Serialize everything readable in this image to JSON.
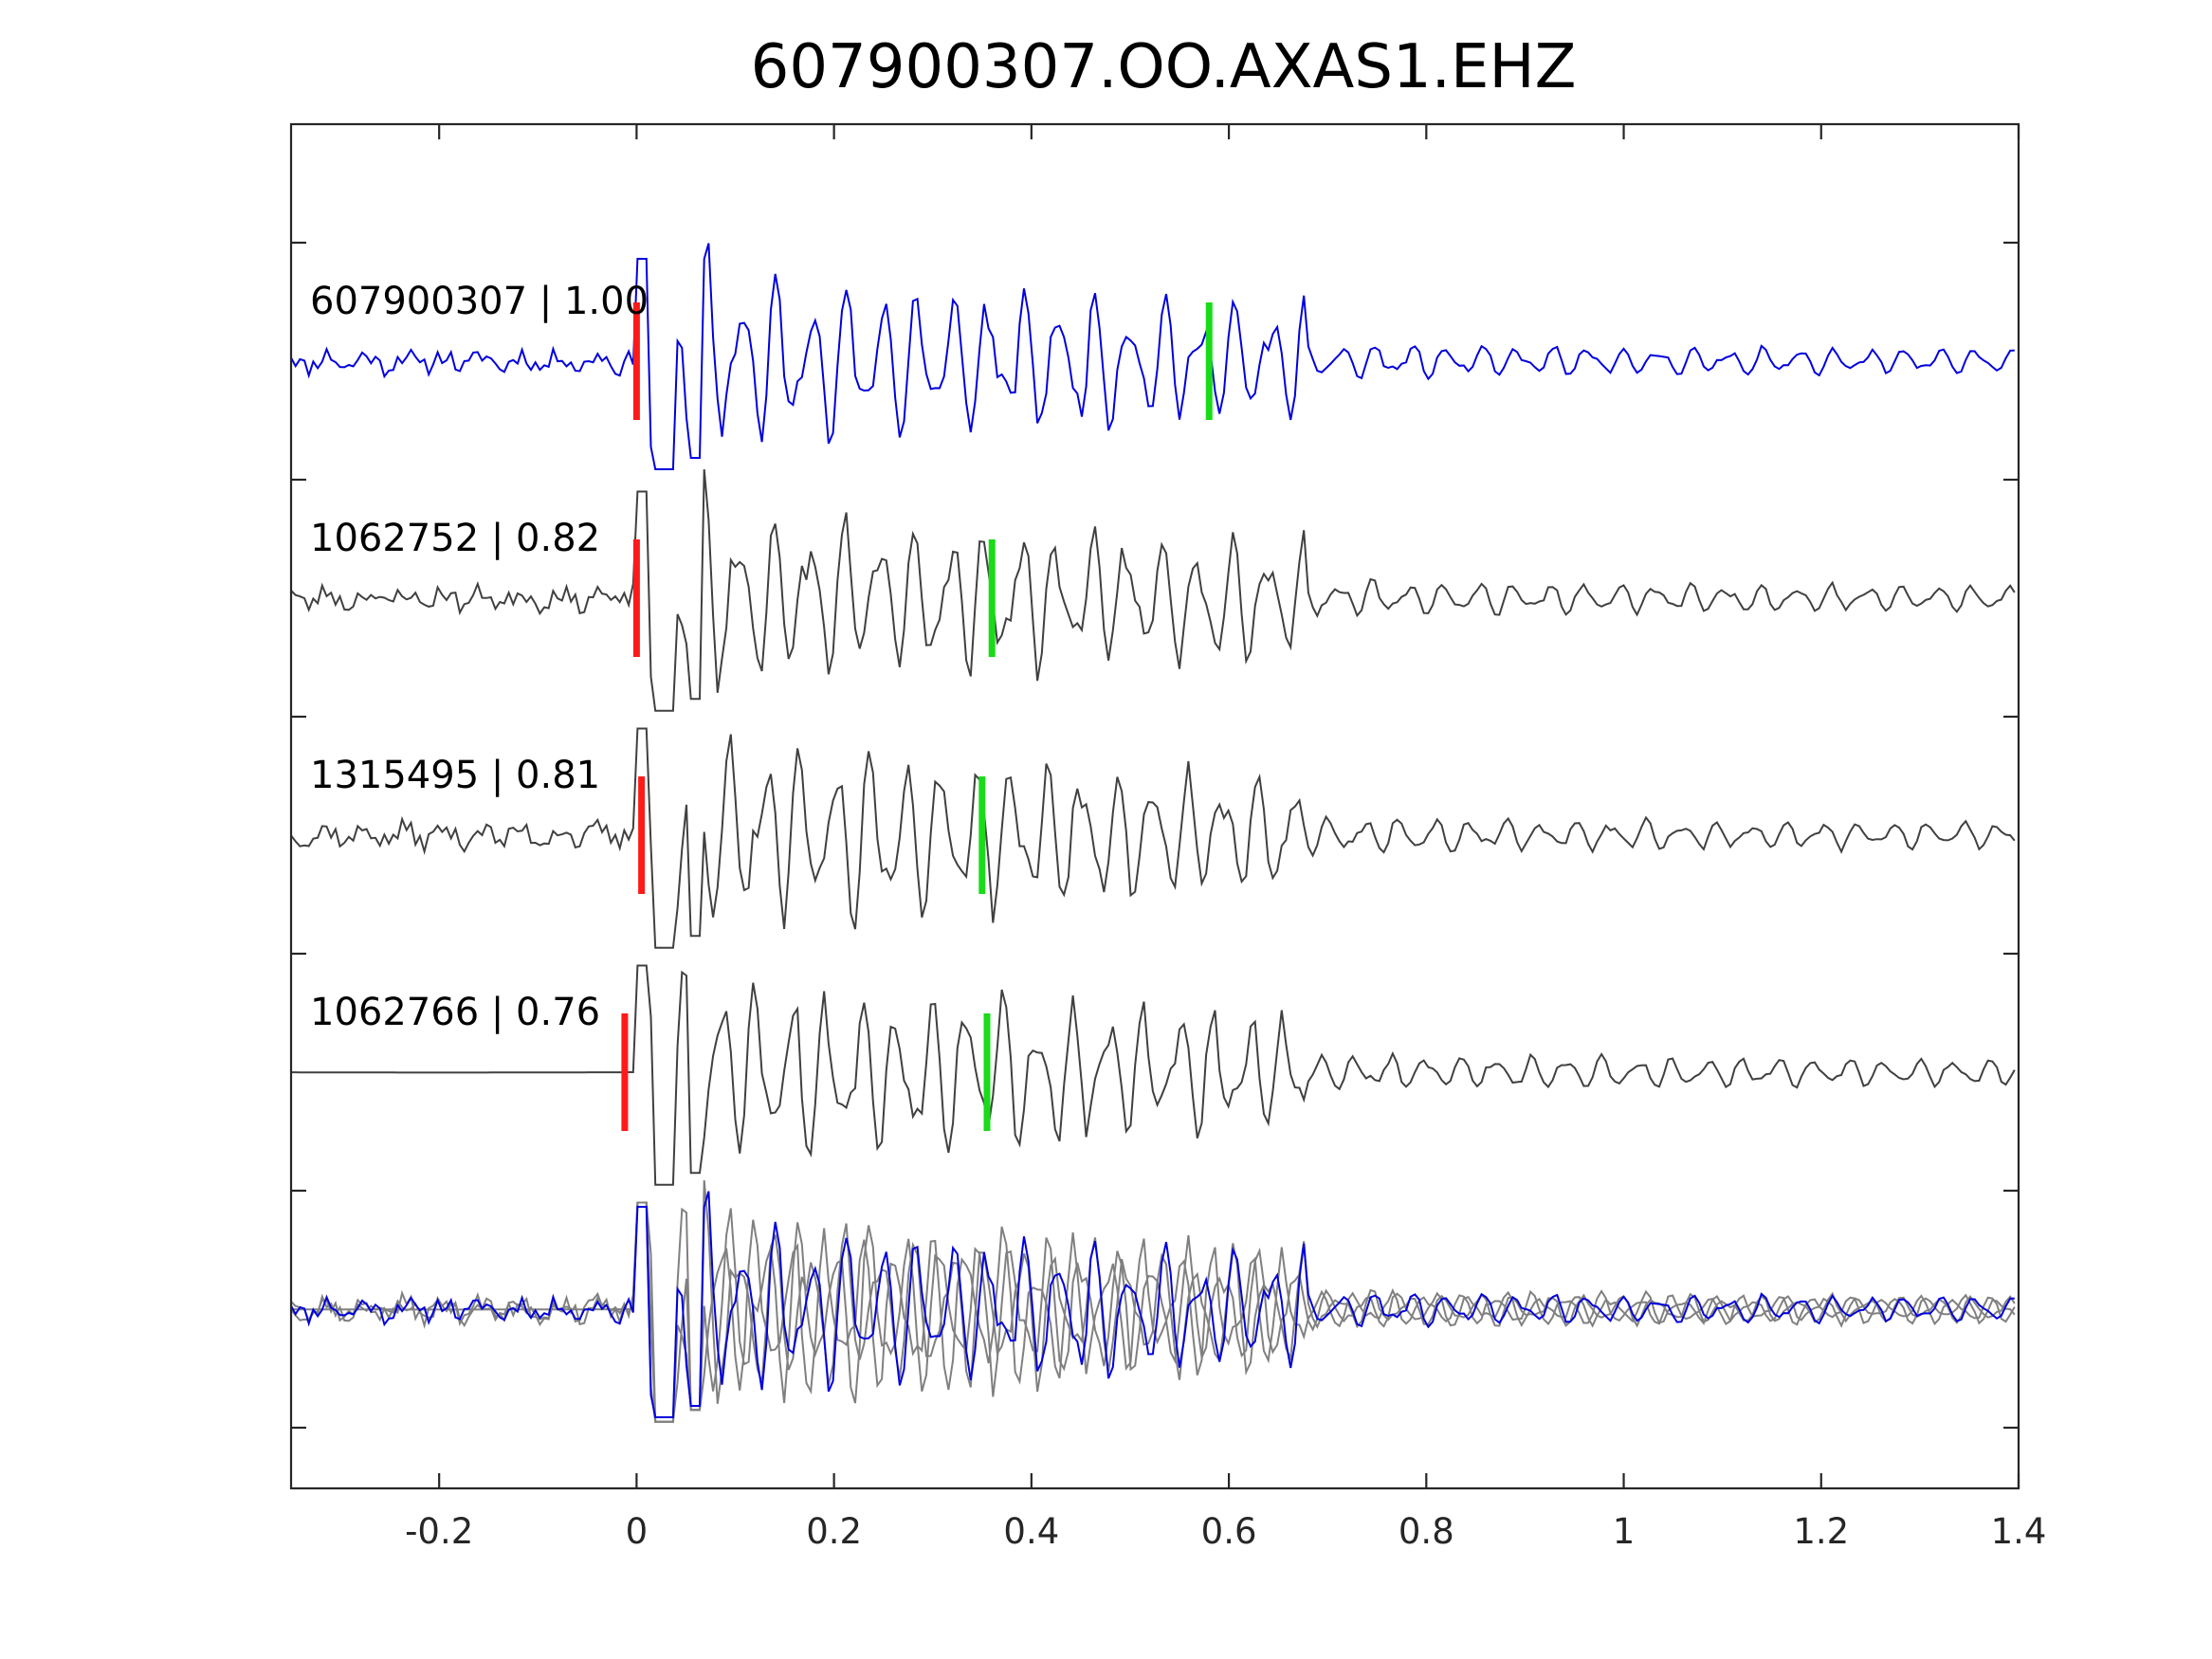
{
  "chart_data": {
    "type": "line",
    "title": "607900307.OO.AXAS1.EHZ",
    "xlabel": "",
    "ylabel": "",
    "xlim": [
      -0.35,
      1.4
    ],
    "x_ticks": [
      -0.2,
      0,
      0.2,
      0.4,
      0.6,
      0.8,
      1,
      1.2,
      1.4
    ],
    "x_tick_labels": [
      "-0.2",
      "0",
      "0.2",
      "0.4",
      "0.6",
      "0.8",
      "1",
      "1.2",
      "1.4"
    ],
    "y_tick_count": 6,
    "grid": false,
    "legend": "none",
    "colors": {
      "reference": "#0000dd",
      "neighbor": "#404040",
      "overlay": "#808080",
      "p_pick": "#ff1a1a",
      "s_pick": "#1adb1a"
    },
    "traces": [
      {
        "label": "607900307 | 1.00",
        "event_id": "607900307",
        "correlation": 1.0,
        "color_role": "reference",
        "p_pick": 0.0,
        "s_pick": 0.58,
        "pre_event_flat": false
      },
      {
        "label": "1062752 | 0.82",
        "event_id": "1062752",
        "correlation": 0.82,
        "color_role": "neighbor",
        "p_pick": 0.0,
        "s_pick": 0.36,
        "pre_event_flat": false
      },
      {
        "label": "1315495 | 0.81",
        "event_id": "1315495",
        "correlation": 0.81,
        "color_role": "neighbor",
        "p_pick": 0.005,
        "s_pick": 0.35,
        "pre_event_flat": false
      },
      {
        "label": "1062766 | 0.76",
        "event_id": "1062766",
        "correlation": 0.76,
        "color_role": "neighbor",
        "p_pick": -0.012,
        "s_pick": 0.355,
        "pre_event_flat": true
      }
    ],
    "stacked_overlay": true
  }
}
